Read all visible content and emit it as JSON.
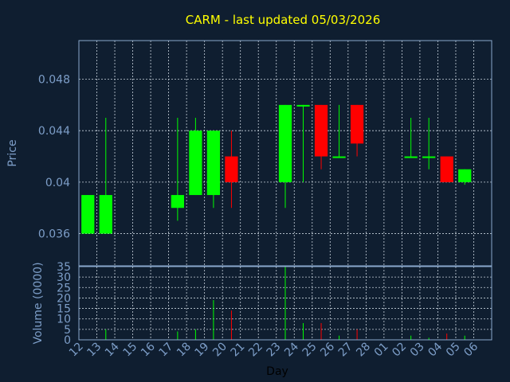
{
  "colors": {
    "background": "#0f1e30",
    "grid": "#c8d2dc",
    "axis_text": "#7d9ec8",
    "title": "#ffff00",
    "up": "#00ff00",
    "down": "#ff0000",
    "frame": "#8aa8cc"
  },
  "chart_data": [
    {
      "type": "candlestick",
      "title": "CARM - last updated 05/03/2026",
      "ylabel": "Price",
      "ylim": [
        0.0335,
        0.051
      ],
      "yticks": [
        0.036,
        0.04,
        0.044,
        0.048
      ],
      "ytick_labels": [
        "0.036",
        "0.04",
        "0.044",
        "0.048"
      ],
      "grid": true,
      "x": [
        "12",
        "13",
        "14",
        "15",
        "16",
        "17",
        "18",
        "19",
        "20",
        "21",
        "22",
        "23",
        "24",
        "25",
        "26",
        "27",
        "28",
        "01",
        "02",
        "03",
        "04",
        "05",
        "06"
      ],
      "candles": [
        {
          "x": "12",
          "open": 0.036,
          "high": 0.039,
          "low": 0.036,
          "close": 0.039,
          "dir": "up"
        },
        {
          "x": "13",
          "open": 0.036,
          "high": 0.045,
          "low": 0.036,
          "close": 0.039,
          "dir": "up"
        },
        {
          "x": "17",
          "open": 0.038,
          "high": 0.045,
          "low": 0.037,
          "close": 0.039,
          "dir": "up"
        },
        {
          "x": "18",
          "open": 0.039,
          "high": 0.045,
          "low": 0.039,
          "close": 0.044,
          "dir": "up"
        },
        {
          "x": "19",
          "open": 0.039,
          "high": 0.044,
          "low": 0.038,
          "close": 0.044,
          "dir": "up"
        },
        {
          "x": "20",
          "open": 0.042,
          "high": 0.044,
          "low": 0.038,
          "close": 0.04,
          "dir": "down"
        },
        {
          "x": "23",
          "open": 0.04,
          "high": 0.046,
          "low": 0.038,
          "close": 0.046,
          "dir": "up"
        },
        {
          "x": "24",
          "open": 0.046,
          "high": 0.046,
          "low": 0.04,
          "close": 0.046,
          "dir": "up"
        },
        {
          "x": "25",
          "open": 0.046,
          "high": 0.046,
          "low": 0.041,
          "close": 0.042,
          "dir": "down"
        },
        {
          "x": "26",
          "open": 0.042,
          "high": 0.046,
          "low": 0.042,
          "close": 0.042,
          "dir": "up"
        },
        {
          "x": "27",
          "open": 0.046,
          "high": 0.046,
          "low": 0.042,
          "close": 0.043,
          "dir": "down"
        },
        {
          "x": "02",
          "open": 0.042,
          "high": 0.045,
          "low": 0.042,
          "close": 0.042,
          "dir": "up"
        },
        {
          "x": "03",
          "open": 0.042,
          "high": 0.045,
          "low": 0.041,
          "close": 0.042,
          "dir": "up"
        },
        {
          "x": "04",
          "open": 0.042,
          "high": 0.042,
          "low": 0.04,
          "close": 0.04,
          "dir": "down"
        },
        {
          "x": "05",
          "open": 0.04,
          "high": 0.041,
          "low": 0.0398,
          "close": 0.041,
          "dir": "up"
        }
      ]
    },
    {
      "type": "bar",
      "ylabel": "Volume (0000)",
      "xlabel": "Day",
      "ylim": [
        0,
        35
      ],
      "yticks": [
        0,
        5,
        10,
        15,
        20,
        25,
        30,
        35
      ],
      "ytick_labels": [
        "0",
        "5",
        "10",
        "15",
        "20",
        "25",
        "30",
        "35"
      ],
      "x": [
        "12",
        "13",
        "14",
        "15",
        "16",
        "17",
        "18",
        "19",
        "20",
        "21",
        "22",
        "23",
        "24",
        "25",
        "26",
        "27",
        "28",
        "01",
        "02",
        "03",
        "04",
        "05",
        "06"
      ],
      "bars": [
        {
          "x": "13",
          "value": 5,
          "dir": "up"
        },
        {
          "x": "17",
          "value": 4,
          "dir": "up"
        },
        {
          "x": "18",
          "value": 5,
          "dir": "up"
        },
        {
          "x": "19",
          "value": 19,
          "dir": "up"
        },
        {
          "x": "20",
          "value": 14,
          "dir": "down"
        },
        {
          "x": "23",
          "value": 35,
          "dir": "up"
        },
        {
          "x": "24",
          "value": 8,
          "dir": "up"
        },
        {
          "x": "25",
          "value": 8,
          "dir": "down"
        },
        {
          "x": "26",
          "value": 2,
          "dir": "up"
        },
        {
          "x": "27",
          "value": 5,
          "dir": "down"
        },
        {
          "x": "02",
          "value": 2,
          "dir": "up"
        },
        {
          "x": "03",
          "value": 1,
          "dir": "up"
        },
        {
          "x": "04",
          "value": 3,
          "dir": "down"
        },
        {
          "x": "05",
          "value": 2,
          "dir": "up"
        }
      ]
    }
  ]
}
